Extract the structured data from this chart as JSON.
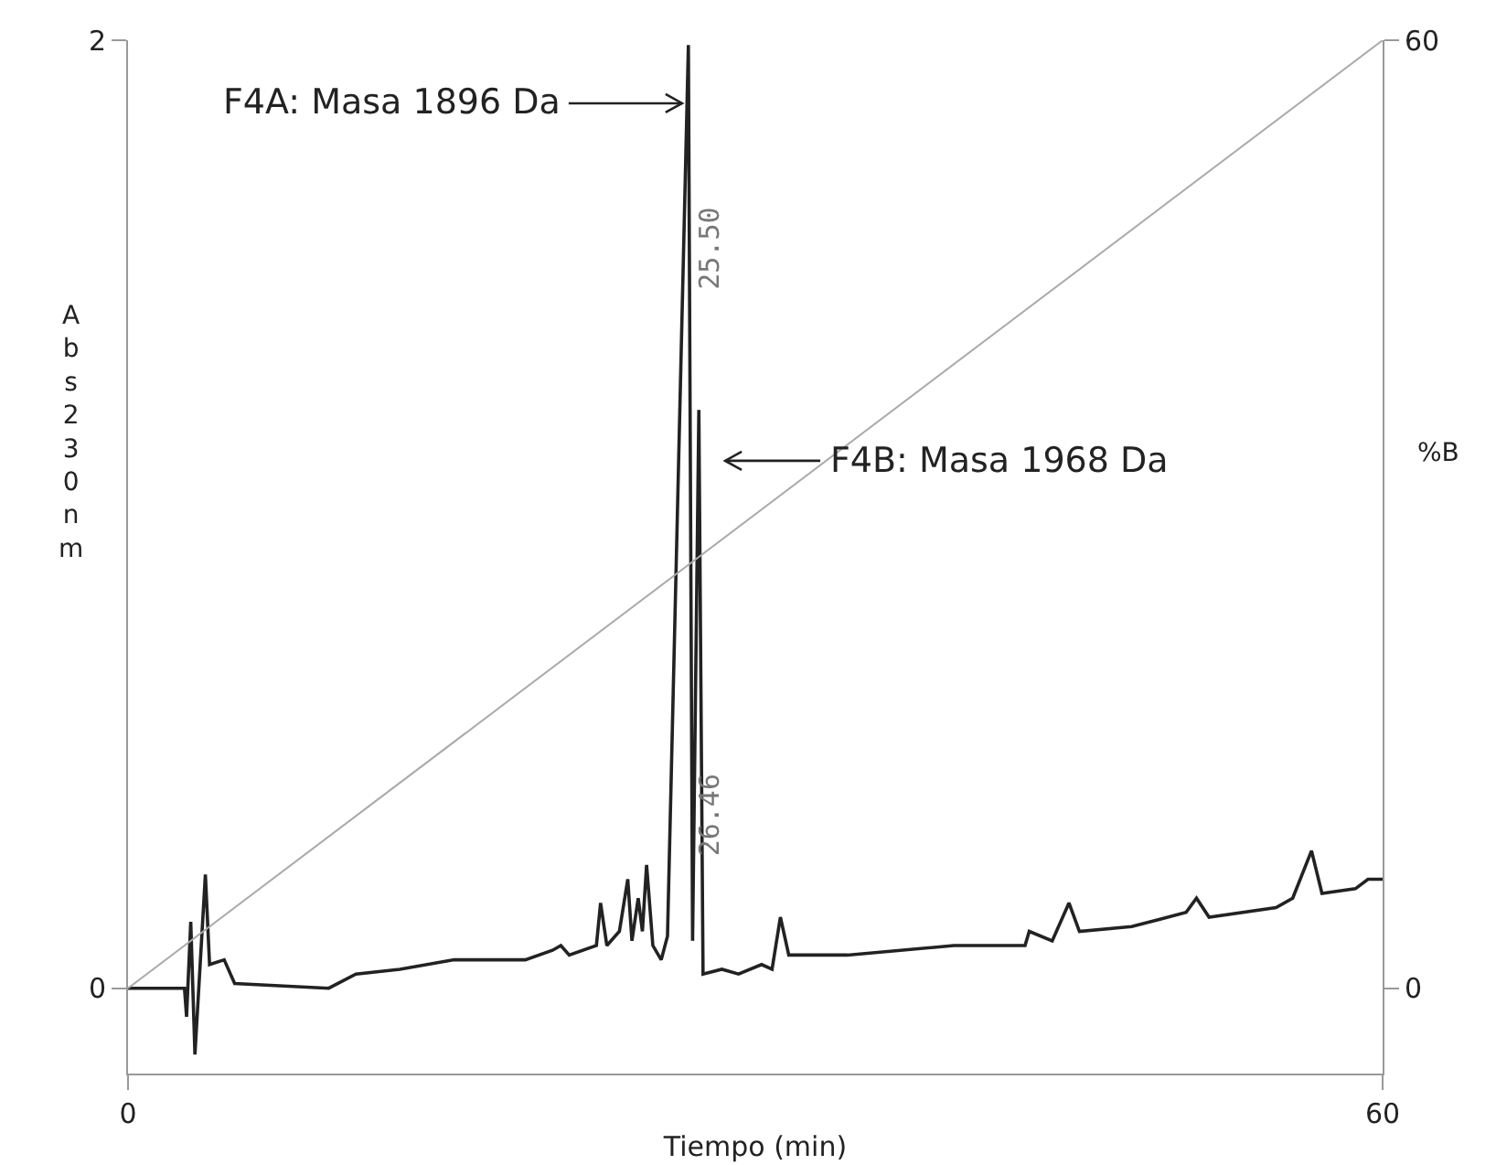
{
  "chart_data": {
    "type": "line",
    "xlabel": "Tiempo (min)",
    "ylabel": "Abs230nm",
    "y2label": "%B",
    "series": [
      {
        "color": "#222222",
        "x": [
          0,
          2.7,
          2.8,
          3.0,
          3.2,
          3.7,
          3.9,
          4.6,
          5.1,
          9.6,
          10.9,
          13.0,
          15.6,
          19.0,
          20.3,
          20.7,
          21.1,
          22.4,
          22.6,
          22.9,
          23.5,
          23.9,
          24.1,
          24.4,
          24.6,
          24.8,
          25.1,
          25.5,
          25.8,
          26.8,
          27.0,
          27.3,
          27.5,
          28.4,
          29.2,
          30.3,
          30.8,
          31.2,
          31.6,
          34.4,
          39.5,
          42.9,
          43.1,
          44.2,
          45.0,
          45.5,
          48.0,
          50.6,
          51.1,
          51.7,
          54.9,
          55.7,
          56.6,
          57.1,
          58.7,
          59.3,
          60
        ],
        "values": [
          0,
          0,
          -0.06,
          0.14,
          -0.14,
          0.24,
          0.05,
          0.06,
          0.01,
          0,
          0.03,
          0.04,
          0.06,
          0.06,
          0.08,
          0.09,
          0.07,
          0.09,
          0.18,
          0.09,
          0.12,
          0.23,
          0.1,
          0.19,
          0.12,
          0.26,
          0.09,
          0.06,
          0.11,
          1.99,
          0.1,
          1.22,
          0.03,
          0.04,
          0.03,
          0.05,
          0.04,
          0.15,
          0.07,
          0.07,
          0.09,
          0.09,
          0.12,
          0.1,
          0.18,
          0.12,
          0.13,
          0.16,
          0.19,
          0.15,
          0.17,
          0.19,
          0.29,
          0.2,
          0.21,
          0.23,
          0.23
        ]
      },
      {
        "color": "#aaaaaa",
        "axis": "y2",
        "x": [
          0,
          60
        ],
        "values": [
          0,
          60
        ]
      }
    ],
    "xlim": [
      0,
      60
    ],
    "xticks": [
      0,
      60
    ],
    "ylim": [
      -0.18,
      2
    ],
    "yticks": [
      0,
      2
    ],
    "y2lim": [
      -5.4,
      60
    ],
    "y2ticks": [
      0,
      60
    ],
    "grid": false,
    "legend": false,
    "marker": "none",
    "line_style": "solid",
    "annotations": [
      "F4A: Masa 1896 Da",
      "F4B: Masa 1968 Da",
      "25.50",
      "26.46"
    ]
  }
}
